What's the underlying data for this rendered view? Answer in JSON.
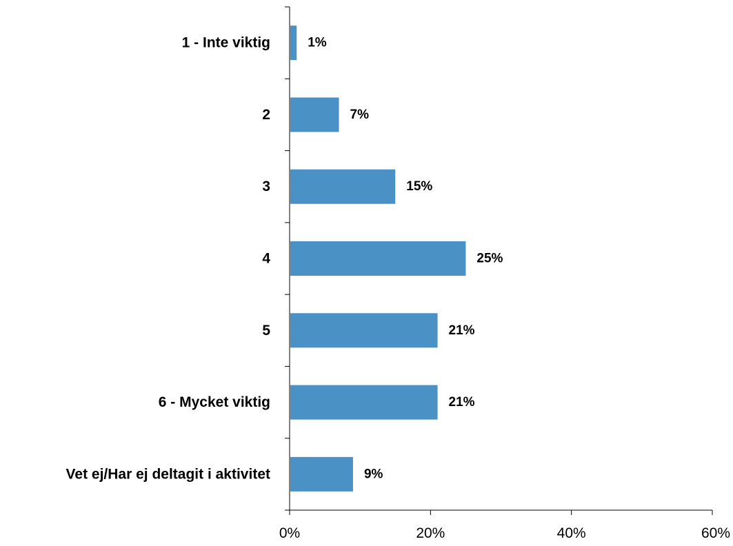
{
  "chart_data": {
    "type": "bar",
    "orientation": "horizontal",
    "categories": [
      "1 - Inte viktig",
      "2",
      "3",
      "4",
      "5",
      "6 - Mycket viktig",
      "Vet ej/Har ej deltagit i aktivitet"
    ],
    "values": [
      1,
      7,
      15,
      25,
      21,
      21,
      9
    ],
    "value_labels": [
      "1%",
      "7%",
      "15%",
      "25%",
      "21%",
      "21%",
      "9%"
    ],
    "xlim": [
      0,
      60
    ],
    "x_ticks": [
      0,
      20,
      40,
      60
    ],
    "x_tick_labels": [
      "0%",
      "20%",
      "40%",
      "60%"
    ],
    "title": "",
    "xlabel": "",
    "ylabel": "",
    "bar_color": "#4a92c6",
    "grid": false,
    "legend": "none"
  }
}
